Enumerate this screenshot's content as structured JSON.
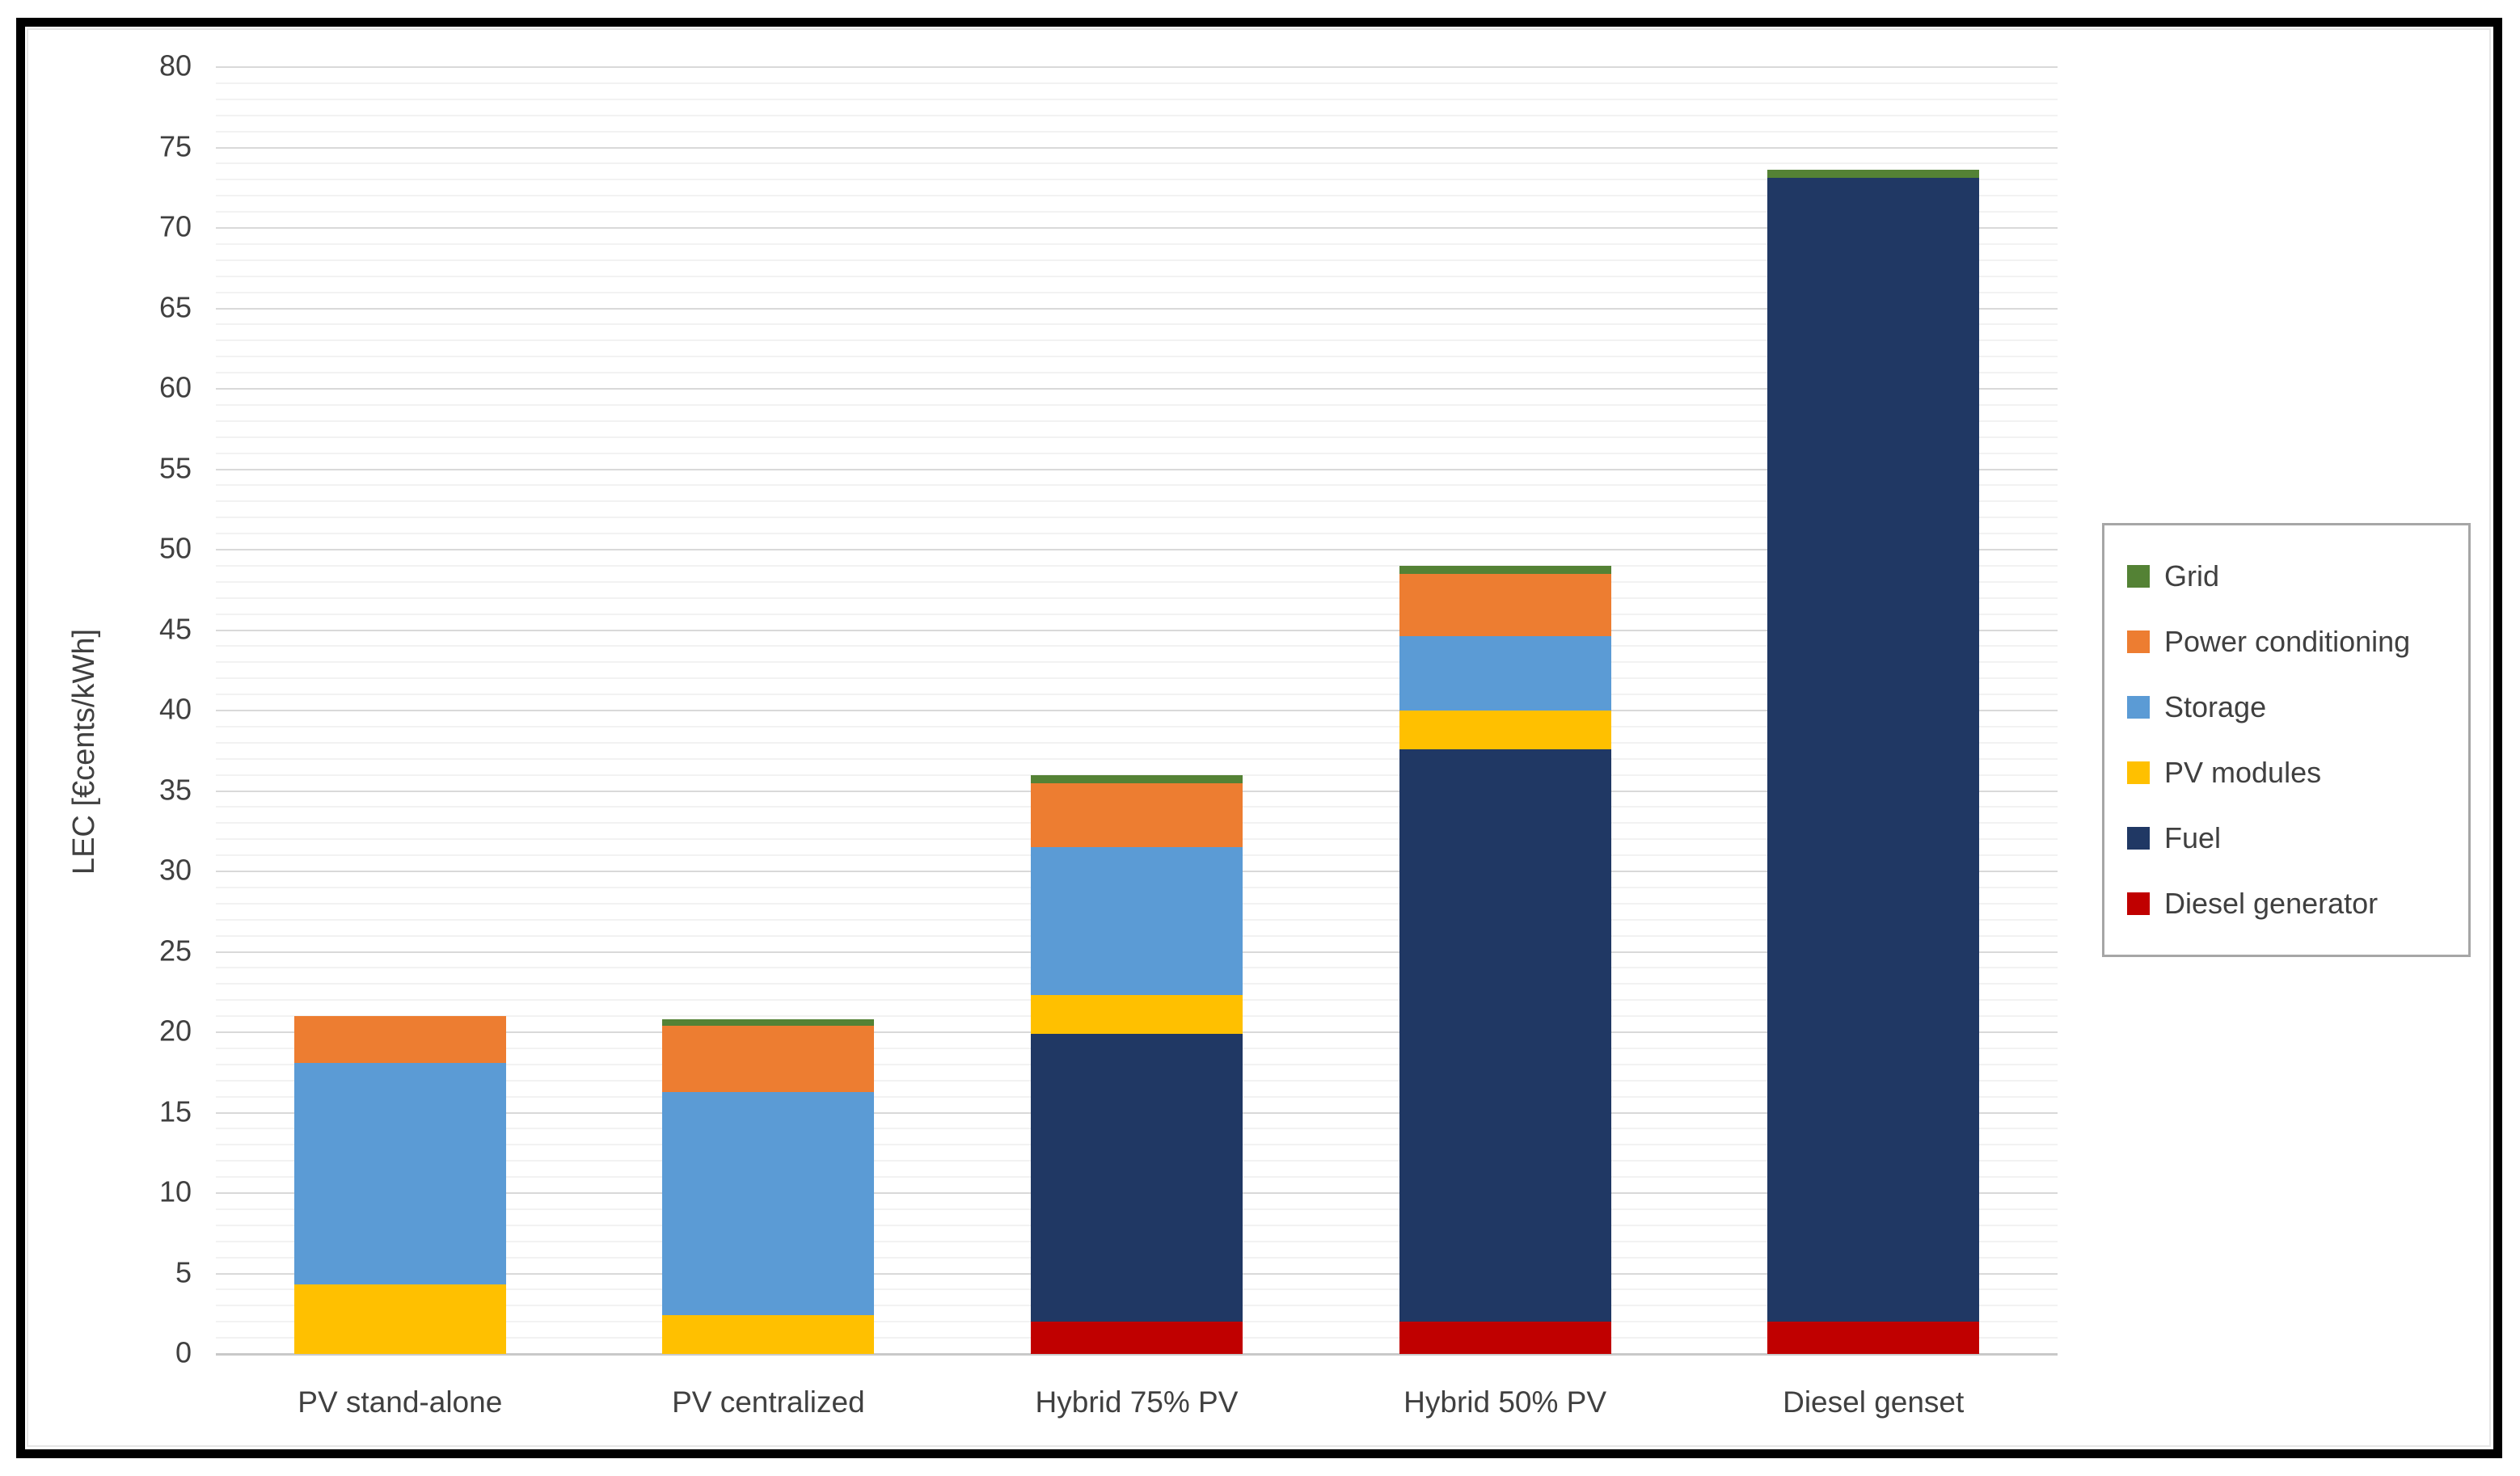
{
  "figure": {
    "background": "#ffffff",
    "border_color": "#000000",
    "text_color": "#404040",
    "gridline_major_color": "#d9d9d9",
    "gridline_minor_color": "#f2f2f2",
    "axis_line_color": "#c9c9c9",
    "legend_border_color": "#a6a6a6"
  },
  "chart_data": {
    "type": "bar",
    "stacked": true,
    "title": "",
    "xlabel": "",
    "ylabel": "LEC [€cents/kWh]",
    "ylim": [
      0,
      80
    ],
    "ytick_step": 5,
    "minor_grid_step": 1,
    "grid": true,
    "legend_position": "right",
    "categories": [
      "PV stand-alone",
      "PV centralized",
      "Hybrid 75% PV",
      "Hybrid 50% PV",
      "Diesel genset"
    ],
    "series": [
      {
        "name": "Diesel generator",
        "color": "#c00000",
        "values": [
          0,
          0,
          2.0,
          2.0,
          2.0
        ]
      },
      {
        "name": "Fuel",
        "color": "#203864",
        "values": [
          0,
          0,
          17.9,
          35.6,
          71.1
        ]
      },
      {
        "name": "PV modules",
        "color": "#ffc000",
        "values": [
          4.3,
          2.4,
          2.4,
          2.4,
          0
        ]
      },
      {
        "name": "Storage",
        "color": "#5b9bd5",
        "values": [
          13.8,
          13.9,
          9.2,
          4.6,
          0
        ]
      },
      {
        "name": "Power conditioning",
        "color": "#ed7d31",
        "values": [
          2.9,
          4.1,
          4.0,
          3.9,
          0
        ]
      },
      {
        "name": "Grid",
        "color": "#548235",
        "values": [
          0,
          0.4,
          0.5,
          0.5,
          0.5
        ]
      }
    ],
    "totals": [
      21.0,
      20.8,
      36.0,
      49.0,
      73.6
    ],
    "legend_order": [
      "Grid",
      "Power conditioning",
      "Storage",
      "PV modules",
      "Fuel",
      "Diesel generator"
    ],
    "ytick_labels": [
      "0",
      "5",
      "10",
      "15",
      "20",
      "25",
      "30",
      "35",
      "40",
      "45",
      "50",
      "55",
      "60",
      "65",
      "70",
      "75",
      "80"
    ]
  }
}
